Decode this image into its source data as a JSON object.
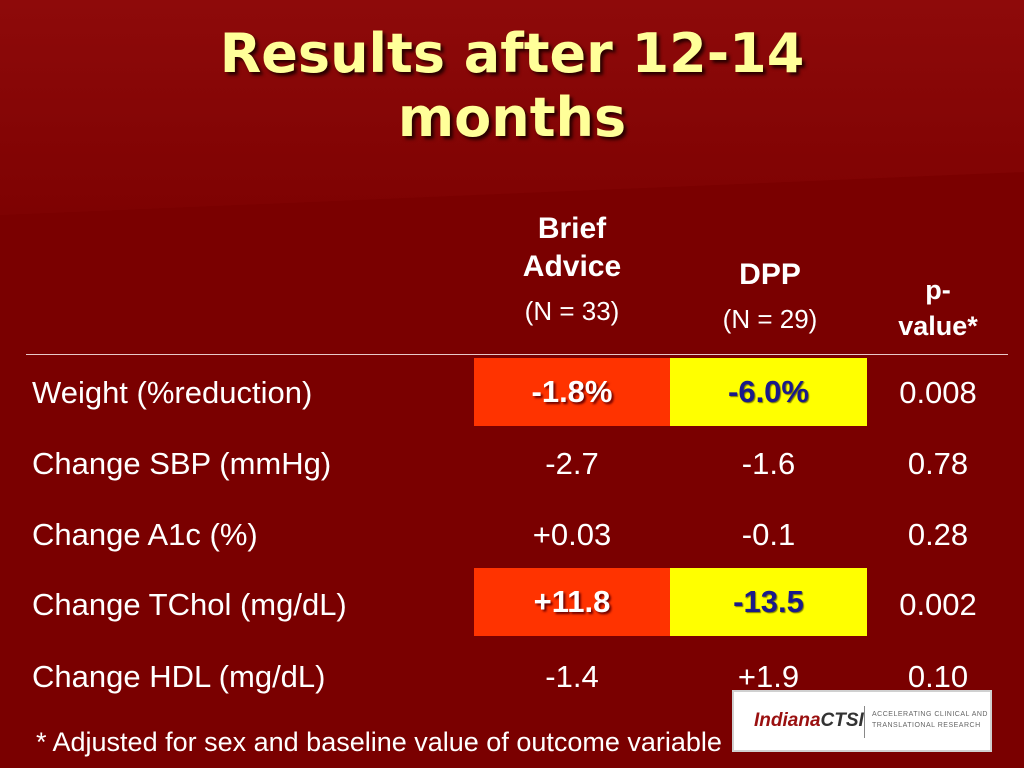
{
  "title": {
    "line1": "Results after 12-14",
    "line2": "months"
  },
  "table": {
    "columns": [
      {
        "name": "Brief Advice",
        "line1": "Brief",
        "line2": "Advice",
        "n": "(N = 33)"
      },
      {
        "name": "DPP",
        "line1": "DPP",
        "n": "(N = 29)"
      },
      {
        "name": "p-value*",
        "line1": "p-",
        "line2": "value*"
      }
    ],
    "rows": [
      {
        "label": "Weight (%reduction)",
        "brief": "-1.8%",
        "dpp": "-6.0%",
        "p": "0.008"
      },
      {
        "label": "Change SBP (mmHg)",
        "brief": "-2.7",
        "dpp": "-1.6",
        "p": "0.78"
      },
      {
        "label": "Change A1c (%)",
        "brief": "+0.03",
        "dpp": "-0.1",
        "p": "0.28"
      },
      {
        "label": "Change TChol (mg/dL)",
        "brief": "+11.8",
        "dpp": "-13.5",
        "p": "0.002"
      },
      {
        "label": "Change HDL (mg/dL)",
        "brief": "-1.4",
        "dpp": "+1.9",
        "p": "0.10"
      }
    ],
    "highlight_colors": {
      "brief": "#ff3300",
      "dpp": "#ffff00"
    }
  },
  "footnote": "* Adjusted for sex and baseline value of outcome variable",
  "logo": {
    "brand_a": "Indiana",
    "brand_b": "CTSI",
    "tagline": "ACCELERATING CLINICAL AND TRANSLATIONAL RESEARCH"
  },
  "colors": {
    "background": "#7a0000",
    "title": "#ffff99"
  }
}
